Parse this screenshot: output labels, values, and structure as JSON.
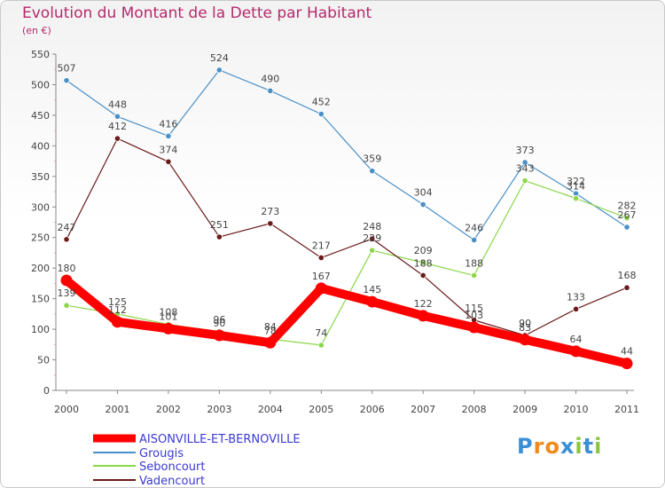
{
  "title": "Evolution du Montant de la Dette par Habitant",
  "subtitle": "(en €)",
  "logo": {
    "text": "Proxiti",
    "letters": [
      "P",
      "r",
      "o",
      "x",
      "i",
      "t",
      "i"
    ],
    "colors": [
      "#3b8fd6",
      "#f08a1c",
      "#f08a1c",
      "#3b8fd6",
      "#8cc63f",
      "#3b8fd6",
      "#8cc63f"
    ]
  },
  "chart_data": {
    "type": "line",
    "title": "Evolution du Montant de la Dette par Habitant",
    "subtitle": "(en €)",
    "xlabel": "",
    "ylabel": "",
    "ylim": [
      0,
      550
    ],
    "yticks": [
      0,
      50,
      100,
      150,
      200,
      250,
      300,
      350,
      400,
      450,
      500,
      550
    ],
    "grid": false,
    "legend_position": "bottom-left",
    "x": [
      "2000",
      "2001",
      "2002",
      "2003",
      "2004",
      "2005",
      "2006",
      "2007",
      "2008",
      "2009",
      "2010",
      "2011"
    ],
    "series": [
      {
        "name": "AISONVILLE-ET-BERNOVILLE",
        "color": "#ff0000",
        "values": [
          180,
          112,
          101,
          90,
          78,
          167,
          145,
          122,
          103,
          83,
          64,
          44
        ]
      },
      {
        "name": "Grougis",
        "color": "#4a90c8",
        "values": [
          507,
          448,
          416,
          524,
          490,
          452,
          359,
          304,
          246,
          373,
          322,
          267
        ]
      },
      {
        "name": "Seboncourt",
        "color": "#8cd64a",
        "values": [
          139,
          125,
          108,
          96,
          84,
          74,
          229,
          209,
          188,
          343,
          314,
          282
        ]
      },
      {
        "name": "Vadencourt",
        "color": "#6b1a1a",
        "values": [
          247,
          412,
          374,
          251,
          273,
          217,
          248,
          188,
          115,
          90,
          133,
          168
        ]
      }
    ]
  }
}
